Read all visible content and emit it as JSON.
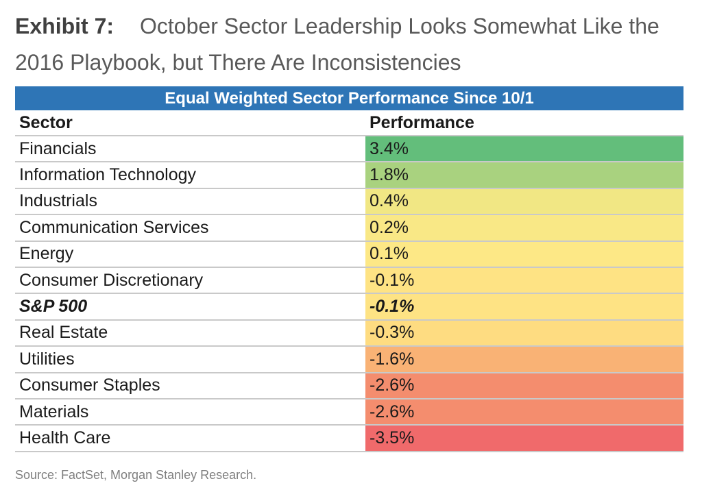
{
  "title": {
    "exhibit": "Exhibit 7:",
    "text": "October Sector Leadership Looks Somewhat Like the 2016 Playbook, but There Are Inconsistencies"
  },
  "source": "Source: FactSet, Morgan Stanley Research.",
  "chart_data": {
    "type": "table",
    "title": "Equal Weighted Sector Performance Since 10/1",
    "columns": [
      "Sector",
      "Performance"
    ],
    "rows": [
      {
        "sector": "Financials",
        "performance": "3.4%",
        "value": 3.4,
        "color": "#63be7b",
        "emphasis": false
      },
      {
        "sector": "Information Technology",
        "performance": "1.8%",
        "value": 1.8,
        "color": "#a9d27f",
        "emphasis": false
      },
      {
        "sector": "Industrials",
        "performance": "0.4%",
        "value": 0.4,
        "color": "#f1e784",
        "emphasis": false
      },
      {
        "sector": "Communication Services",
        "performance": "0.2%",
        "value": 0.2,
        "color": "#f9e886",
        "emphasis": false
      },
      {
        "sector": "Energy",
        "performance": "0.1%",
        "value": 0.1,
        "color": "#fde886",
        "emphasis": false
      },
      {
        "sector": "Consumer Discretionary",
        "performance": "-0.1%",
        "value": -0.1,
        "color": "#fee384",
        "emphasis": false
      },
      {
        "sector": "S&P 500",
        "performance": "-0.1%",
        "value": -0.1,
        "color": "#fee384",
        "emphasis": true
      },
      {
        "sector": "Real Estate",
        "performance": "-0.3%",
        "value": -0.3,
        "color": "#fedc81",
        "emphasis": false
      },
      {
        "sector": "Utilities",
        "performance": "-1.6%",
        "value": -1.6,
        "color": "#f9b275",
        "emphasis": false
      },
      {
        "sector": "Consumer Staples",
        "performance": "-2.6%",
        "value": -2.6,
        "color": "#f48d6e",
        "emphasis": false
      },
      {
        "sector": "Materials",
        "performance": "-2.6%",
        "value": -2.6,
        "color": "#f48d6e",
        "emphasis": false
      },
      {
        "sector": "Health Care",
        "performance": "-3.5%",
        "value": -3.5,
        "color": "#f06a6b",
        "emphasis": false
      }
    ]
  }
}
